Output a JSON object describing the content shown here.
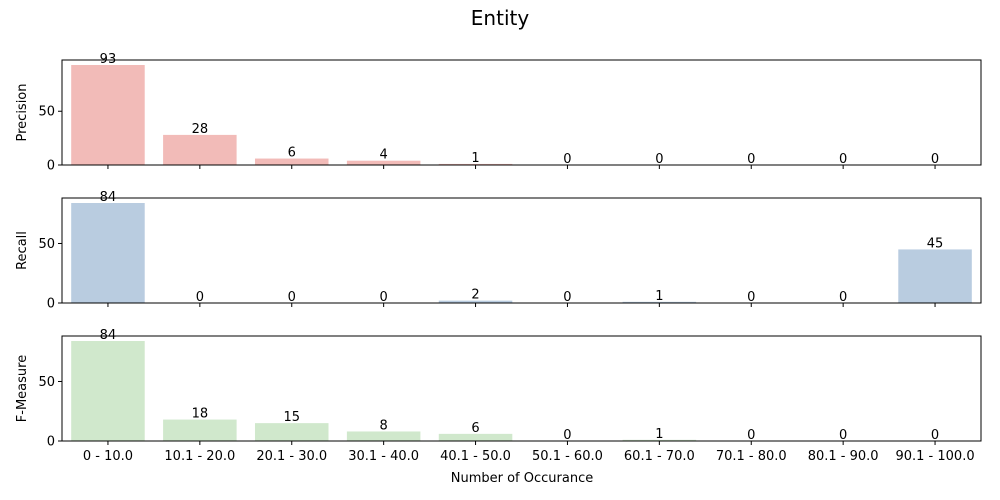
{
  "chart_data": {
    "type": "bar",
    "title": "Entity",
    "xlabel": "Number of Occurance",
    "categories": [
      "0 - 10.0",
      "10.1 - 20.0",
      "20.1 - 30.0",
      "30.1 - 40.0",
      "40.1 - 50.0",
      "50.1 - 60.0",
      "60.1 - 70.0",
      "70.1 - 80.0",
      "80.1 - 90.0",
      "90.1 - 100.0"
    ],
    "subplots": [
      {
        "ylabel": "Precision",
        "values": [
          93,
          28,
          6,
          4,
          1,
          0,
          0,
          0,
          0,
          0
        ],
        "color": "#f2bbb8",
        "ylim": [
          0,
          97.65
        ],
        "yticks": [
          0,
          50
        ]
      },
      {
        "ylabel": "Recall",
        "values": [
          84,
          0,
          0,
          0,
          2,
          0,
          1,
          0,
          0,
          45
        ],
        "color": "#b9cce0",
        "ylim": [
          0,
          88.2
        ],
        "yticks": [
          0,
          50
        ]
      },
      {
        "ylabel": "F-Measure",
        "values": [
          84,
          18,
          15,
          8,
          6,
          0,
          1,
          0,
          0,
          0
        ],
        "color": "#d0e8cc",
        "ylim": [
          0,
          88.2
        ],
        "yticks": [
          0,
          50
        ]
      }
    ],
    "grid": false,
    "shared_x": true
  }
}
